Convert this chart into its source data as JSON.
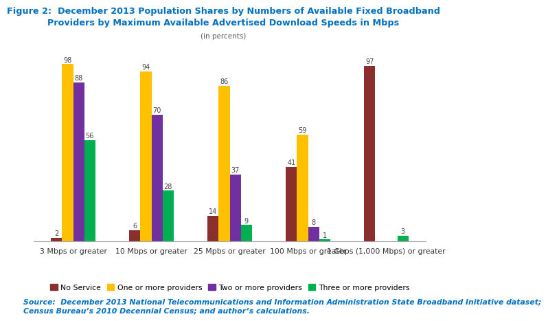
{
  "title_line1": "Figure 2:  December 2013 Population Shares by Numbers of Available Fixed Broadband",
  "title_line2": "Providers by Maximum Available Advertised Download Speeds in Mbps",
  "subtitle": "(in percents)",
  "categories": [
    "3 Mbps or greater",
    "10 Mbps or greater",
    "25 Mpbs or greater",
    "100 Mbps or greater",
    "1 Gbps (1,000 Mbps) or greater"
  ],
  "series": [
    {
      "label": "No Service",
      "color": "#8B2E2E",
      "values": [
        2,
        6,
        14,
        41,
        97
      ]
    },
    {
      "label": "One or more providers",
      "color": "#FFC000",
      "values": [
        98,
        94,
        86,
        59,
        0
      ]
    },
    {
      "label": "Two or more providers",
      "color": "#7030A0",
      "values": [
        88,
        70,
        37,
        8,
        0
      ]
    },
    {
      "label": "Three or more providers",
      "color": "#00B050",
      "values": [
        56,
        28,
        9,
        1,
        3
      ]
    }
  ],
  "ylim": [
    0,
    112
  ],
  "bar_width": 0.17,
  "source_text": "Source:  December 2013 National Telecommunications and Information Administration State Broadband Initiative dataset;\nCensus Bureau’s 2010 Decennial Census; and author’s calculations.",
  "title_color": "#0070C0",
  "subtitle_color": "#595959",
  "source_color": "#0070C0",
  "bg_color": "#FFFFFF",
  "label_fontsize": 7.0,
  "title_fontsize": 9.2,
  "subtitle_fontsize": 7.5,
  "source_fontsize": 7.8,
  "legend_fontsize": 7.8,
  "tick_fontsize": 7.8
}
